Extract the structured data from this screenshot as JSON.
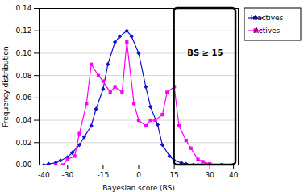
{
  "chart_data": {
    "type": "line",
    "xlabel": "Bayesian score (BS)",
    "ylabel": "Frequency distribution",
    "xlim": [
      -42,
      42
    ],
    "ylim": [
      0,
      0.14
    ],
    "xticks": [
      -40,
      -30,
      -15,
      0,
      15,
      30,
      40
    ],
    "yticks": [
      {
        "value": 0,
        "label": "0.00"
      },
      0.02,
      0.04,
      0.06,
      0.08,
      {
        "value": 0.1,
        "label": "0.10"
      },
      0.12,
      0.14
    ],
    "grid": "y",
    "legend": "right",
    "series": [
      {
        "name": "Inactives",
        "color": "#1010CC",
        "marker": "diamond",
        "x": [
          -40,
          -38,
          -35,
          -33,
          -30,
          -28,
          -25,
          -23,
          -20,
          -18,
          -15,
          -13,
          -10,
          -8,
          -5,
          -3,
          0,
          3,
          5,
          8,
          10,
          13,
          15,
          18,
          20,
          23,
          25,
          28,
          30,
          35,
          40
        ],
        "values": [
          0,
          0.001,
          0.002,
          0.004,
          0.007,
          0.011,
          0.018,
          0.025,
          0.035,
          0.05,
          0.068,
          0.09,
          0.11,
          0.115,
          0.12,
          0.115,
          0.1,
          0.07,
          0.052,
          0.036,
          0.018,
          0.008,
          0.004,
          0.002,
          0.001,
          0,
          0,
          0,
          0,
          0,
          0
        ]
      },
      {
        "name": "Actives",
        "color": "#FF00FF",
        "marker": "square",
        "x": [
          -35,
          -32,
          -30,
          -27,
          -25,
          -22,
          -20,
          -17,
          -15,
          -12,
          -10,
          -7,
          -5,
          -2,
          0,
          3,
          5,
          7,
          10,
          12,
          15,
          17,
          20,
          22,
          25,
          27,
          30,
          35,
          40
        ],
        "values": [
          0,
          0,
          0.005,
          0.008,
          0.028,
          0.055,
          0.09,
          0.08,
          0.075,
          0.065,
          0.07,
          0.065,
          0.11,
          0.055,
          0.04,
          0.035,
          0.04,
          0.04,
          0.045,
          0.065,
          0.07,
          0.035,
          0.022,
          0.015,
          0.005,
          0.003,
          0.001,
          0,
          0
        ]
      }
    ],
    "annotations": [
      {
        "text": "BS ≥ 15",
        "x": 28,
        "y": 0.1,
        "box": {
          "x": [
            15,
            41
          ],
          "y": [
            0,
            0.14
          ]
        }
      }
    ]
  }
}
